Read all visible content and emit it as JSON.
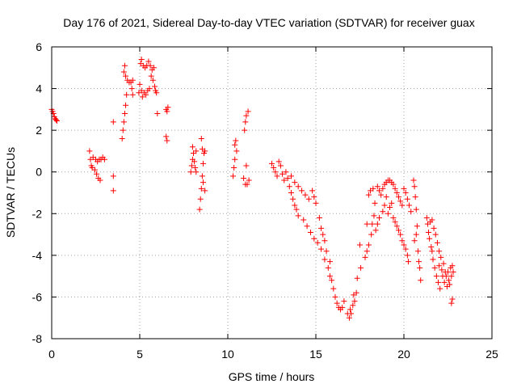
{
  "chart_data": {
    "type": "scatter",
    "title": "Day 176 of 2021, Sidereal Day-to-day VTEC variation (SDTVAR) for receiver guax",
    "xlabel": "GPS time / hours",
    "ylabel": "SDTVAR / TECUs",
    "xlim": [
      0,
      25
    ],
    "ylim": [
      -8,
      6
    ],
    "xticks": [
      0,
      5,
      10,
      15,
      20,
      25
    ],
    "yticks": [
      -8,
      -6,
      -4,
      -2,
      0,
      2,
      4,
      6
    ],
    "grid": true,
    "marker": "+",
    "color": "#ff0000",
    "series": [
      {
        "name": "SDTVAR",
        "points": [
          [
            0.0,
            3.0
          ],
          [
            0.05,
            2.9
          ],
          [
            0.1,
            2.8
          ],
          [
            0.15,
            2.65
          ],
          [
            0.2,
            2.55
          ],
          [
            0.25,
            2.5
          ],
          [
            0.3,
            2.45
          ],
          [
            2.15,
            1.0
          ],
          [
            2.2,
            0.6
          ],
          [
            2.25,
            0.3
          ],
          [
            2.3,
            0.2
          ],
          [
            2.35,
            0.7
          ],
          [
            2.45,
            0.1
          ],
          [
            2.55,
            -0.1
          ],
          [
            2.65,
            -0.3
          ],
          [
            2.75,
            -0.4
          ],
          [
            2.5,
            0.6
          ],
          [
            2.6,
            0.5
          ],
          [
            2.7,
            0.6
          ],
          [
            2.8,
            0.6
          ],
          [
            2.9,
            0.7
          ],
          [
            3.0,
            0.6
          ],
          [
            3.5,
            -0.2
          ],
          [
            3.5,
            -0.9
          ],
          [
            3.5,
            2.4
          ],
          [
            4.0,
            1.6
          ],
          [
            4.05,
            2.0
          ],
          [
            4.1,
            2.4
          ],
          [
            4.15,
            2.8
          ],
          [
            4.2,
            3.2
          ],
          [
            4.25,
            3.7
          ],
          [
            4.1,
            4.8
          ],
          [
            4.15,
            5.1
          ],
          [
            4.2,
            4.6
          ],
          [
            4.3,
            4.4
          ],
          [
            4.4,
            4.3
          ],
          [
            4.5,
            4.3
          ],
          [
            4.55,
            4.0
          ],
          [
            4.6,
            4.4
          ],
          [
            4.6,
            3.7
          ],
          [
            4.95,
            3.8
          ],
          [
            5.0,
            4.2
          ],
          [
            5.05,
            5.2
          ],
          [
            5.1,
            5.4
          ],
          [
            5.1,
            3.9
          ],
          [
            5.15,
            3.6
          ],
          [
            5.2,
            5.1
          ],
          [
            5.25,
            3.8
          ],
          [
            5.3,
            5.0
          ],
          [
            5.35,
            3.7
          ],
          [
            5.4,
            5.1
          ],
          [
            5.45,
            3.9
          ],
          [
            5.5,
            5.3
          ],
          [
            5.55,
            4.0
          ],
          [
            5.6,
            5.1
          ],
          [
            5.65,
            4.6
          ],
          [
            5.7,
            4.9
          ],
          [
            5.75,
            4.4
          ],
          [
            5.8,
            5.0
          ],
          [
            5.85,
            4.1
          ],
          [
            5.9,
            3.9
          ],
          [
            5.95,
            3.8
          ],
          [
            6.0,
            2.8
          ],
          [
            6.5,
            3.0
          ],
          [
            6.55,
            2.9
          ],
          [
            6.6,
            3.1
          ],
          [
            6.5,
            1.7
          ],
          [
            6.55,
            1.5
          ],
          [
            7.9,
            0.0
          ],
          [
            7.95,
            0.3
          ],
          [
            8.0,
            0.6
          ],
          [
            8.0,
            1.2
          ],
          [
            8.05,
            0.9
          ],
          [
            8.1,
            0.5
          ],
          [
            8.15,
            0.2
          ],
          [
            8.2,
            1.0
          ],
          [
            8.2,
            0.0
          ],
          [
            8.4,
            -1.8
          ],
          [
            8.45,
            -1.3
          ],
          [
            8.5,
            -0.8
          ],
          [
            8.5,
            1.6
          ],
          [
            8.55,
            -0.2
          ],
          [
            8.55,
            1.1
          ],
          [
            8.6,
            0.4
          ],
          [
            8.6,
            -0.5
          ],
          [
            8.65,
            0.9
          ],
          [
            8.7,
            -0.9
          ],
          [
            8.7,
            1.0
          ],
          [
            10.3,
            -0.2
          ],
          [
            10.35,
            0.2
          ],
          [
            10.4,
            0.6
          ],
          [
            10.4,
            1.3
          ],
          [
            10.45,
            1.5
          ],
          [
            10.5,
            1.0
          ],
          [
            10.9,
            -0.3
          ],
          [
            10.95,
            2.0
          ],
          [
            11.0,
            -0.6
          ],
          [
            11.0,
            2.4
          ],
          [
            11.05,
            0.3
          ],
          [
            11.05,
            2.7
          ],
          [
            11.1,
            -0.6
          ],
          [
            11.15,
            2.9
          ],
          [
            11.2,
            -0.4
          ],
          [
            12.5,
            0.4
          ],
          [
            12.6,
            0.2
          ],
          [
            12.7,
            0.0
          ],
          [
            12.8,
            -0.2
          ],
          [
            12.9,
            0.5
          ],
          [
            13.0,
            0.3
          ],
          [
            13.1,
            -0.1
          ],
          [
            13.2,
            -0.4
          ],
          [
            13.3,
            0.0
          ],
          [
            13.4,
            -0.3
          ],
          [
            13.5,
            -0.7
          ],
          [
            13.6,
            -1.0
          ],
          [
            13.7,
            -1.3
          ],
          [
            13.8,
            -1.6
          ],
          [
            13.9,
            -1.8
          ],
          [
            14.0,
            -2.1
          ],
          [
            13.6,
            -0.2
          ],
          [
            13.8,
            -0.5
          ],
          [
            14.0,
            -0.7
          ],
          [
            14.2,
            -0.9
          ],
          [
            14.4,
            -1.1
          ],
          [
            14.6,
            -1.3
          ],
          [
            14.3,
            -2.3
          ],
          [
            14.5,
            -2.6
          ],
          [
            14.7,
            -2.9
          ],
          [
            14.8,
            -0.9
          ],
          [
            14.9,
            -1.2
          ],
          [
            15.0,
            -1.5
          ],
          [
            14.9,
            -3.2
          ],
          [
            15.1,
            -3.4
          ],
          [
            15.2,
            -2.2
          ],
          [
            15.3,
            -2.7
          ],
          [
            15.3,
            -3.7
          ],
          [
            15.4,
            -3.0
          ],
          [
            15.5,
            -3.3
          ],
          [
            15.5,
            -4.2
          ],
          [
            15.6,
            -3.8
          ],
          [
            15.7,
            -4.6
          ],
          [
            15.8,
            -4.3
          ],
          [
            15.8,
            -5.0
          ],
          [
            15.9,
            -5.2
          ],
          [
            16.0,
            -5.6
          ],
          [
            16.1,
            -6.0
          ],
          [
            16.2,
            -6.3
          ],
          [
            16.3,
            -6.5
          ],
          [
            16.4,
            -6.6
          ],
          [
            16.5,
            -6.5
          ],
          [
            16.6,
            -6.2
          ],
          [
            16.8,
            -6.8
          ],
          [
            16.9,
            -7.0
          ],
          [
            16.95,
            -6.6
          ],
          [
            17.0,
            -6.8
          ],
          [
            17.1,
            -6.4
          ],
          [
            17.15,
            -5.9
          ],
          [
            17.2,
            -6.2
          ],
          [
            17.3,
            -5.8
          ],
          [
            17.35,
            -5.1
          ],
          [
            17.5,
            -3.5
          ],
          [
            17.55,
            -4.6
          ],
          [
            17.8,
            -4.1
          ],
          [
            17.9,
            -3.8
          ],
          [
            18.0,
            -3.5
          ],
          [
            17.9,
            -2.5
          ],
          [
            18.0,
            -1.1
          ],
          [
            18.1,
            -0.9
          ],
          [
            18.15,
            -3.0
          ],
          [
            18.2,
            -2.5
          ],
          [
            18.3,
            -2.1
          ],
          [
            18.25,
            -0.8
          ],
          [
            18.35,
            -1.5
          ],
          [
            18.4,
            -2.8
          ],
          [
            18.5,
            -2.5
          ],
          [
            18.6,
            -2.2
          ],
          [
            18.5,
            -0.7
          ],
          [
            18.6,
            -0.9
          ],
          [
            18.7,
            -1.1
          ],
          [
            18.8,
            -0.8
          ],
          [
            18.8,
            -1.9
          ],
          [
            18.9,
            -0.6
          ],
          [
            18.9,
            -1.6
          ],
          [
            19.0,
            -0.5
          ],
          [
            19.0,
            -1.2
          ],
          [
            19.1,
            -0.4
          ],
          [
            19.1,
            -2.0
          ],
          [
            19.2,
            -0.4
          ],
          [
            19.2,
            -1.7
          ],
          [
            19.3,
            -0.5
          ],
          [
            19.3,
            -1.5
          ],
          [
            19.4,
            -0.6
          ],
          [
            19.4,
            -2.2
          ],
          [
            19.5,
            -2.4
          ],
          [
            19.5,
            -0.8
          ],
          [
            19.6,
            -1.0
          ],
          [
            19.6,
            -2.6
          ],
          [
            19.7,
            -2.8
          ],
          [
            19.7,
            -1.2
          ],
          [
            19.8,
            -1.4
          ],
          [
            19.8,
            -3.0
          ],
          [
            19.9,
            -3.3
          ],
          [
            19.9,
            -1.6
          ],
          [
            20.0,
            -0.8
          ],
          [
            20.0,
            -3.5
          ],
          [
            20.1,
            -1.0
          ],
          [
            20.1,
            -3.7
          ],
          [
            20.2,
            -1.3
          ],
          [
            20.2,
            -4.0
          ],
          [
            20.25,
            -4.3
          ],
          [
            20.3,
            -1.6
          ],
          [
            20.4,
            -1.9
          ],
          [
            20.55,
            -0.4
          ],
          [
            20.6,
            -0.7
          ],
          [
            20.65,
            -1.2
          ],
          [
            20.7,
            -1.8
          ],
          [
            20.6,
            -3.3
          ],
          [
            20.7,
            -3.0
          ],
          [
            20.75,
            -2.6
          ],
          [
            20.8,
            -3.8
          ],
          [
            20.85,
            -4.3
          ],
          [
            20.9,
            -4.6
          ],
          [
            20.95,
            -5.2
          ],
          [
            21.3,
            -2.2
          ],
          [
            21.35,
            -2.5
          ],
          [
            21.4,
            -2.9
          ],
          [
            21.45,
            -3.2
          ],
          [
            21.5,
            -2.4
          ],
          [
            21.55,
            -3.6
          ],
          [
            21.6,
            -3.8
          ],
          [
            21.6,
            -2.3
          ],
          [
            21.65,
            -4.2
          ],
          [
            21.7,
            -2.7
          ],
          [
            21.75,
            -4.6
          ],
          [
            21.8,
            -3.0
          ],
          [
            21.85,
            -5.0
          ],
          [
            21.9,
            -3.4
          ],
          [
            21.95,
            -5.3
          ],
          [
            22.0,
            -4.5
          ],
          [
            22.0,
            -3.8
          ],
          [
            22.05,
            -5.6
          ],
          [
            22.1,
            -4.1
          ],
          [
            22.15,
            -4.7
          ],
          [
            22.2,
            -5.0
          ],
          [
            22.25,
            -4.4
          ],
          [
            22.3,
            -5.3
          ],
          [
            22.35,
            -4.8
          ],
          [
            22.4,
            -5.0
          ],
          [
            22.45,
            -5.5
          ],
          [
            22.5,
            -4.8
          ],
          [
            22.55,
            -5.2
          ],
          [
            22.6,
            -5.4
          ],
          [
            22.65,
            -4.6
          ],
          [
            22.7,
            -5.0
          ],
          [
            22.75,
            -4.5
          ],
          [
            22.8,
            -4.8
          ],
          [
            22.7,
            -6.3
          ],
          [
            22.75,
            -6.1
          ]
        ]
      }
    ]
  }
}
